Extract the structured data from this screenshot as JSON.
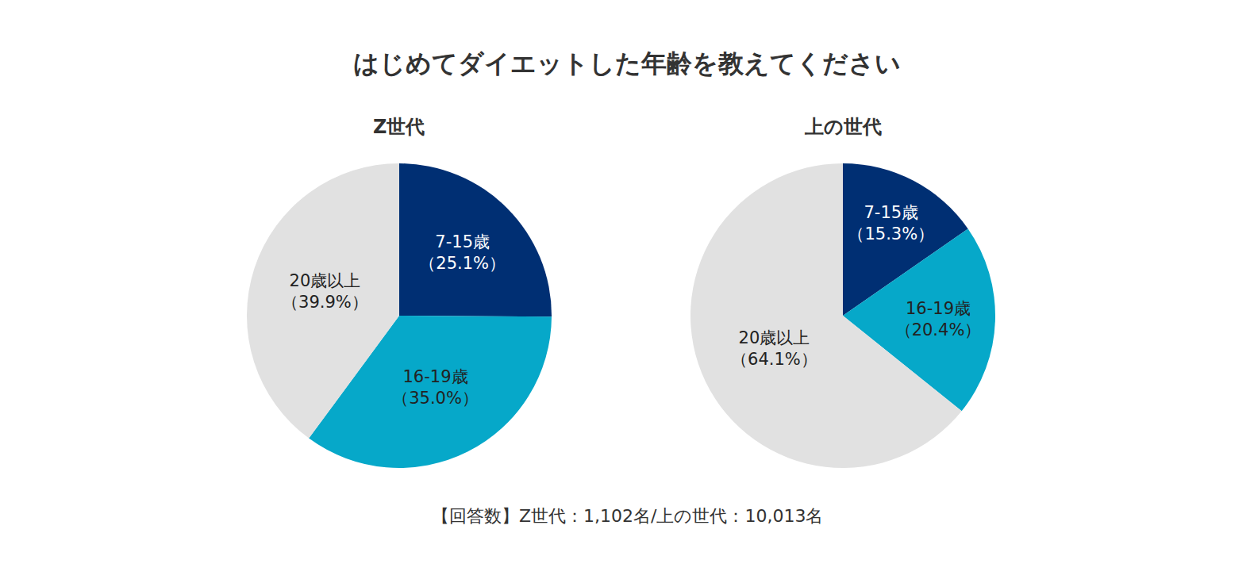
{
  "title": "はじめてダイエットした年齢を教えてください",
  "footnote": "【回答数】Z世代：1,102名/上の世代：10,013名",
  "chart_data": [
    {
      "type": "pie",
      "title": "Z世代",
      "categories": [
        "7-15歳",
        "16-19歳",
        "20歳以上"
      ],
      "values": [
        25.1,
        35.0,
        39.9
      ],
      "value_labels": [
        "（25.1%）",
        "（35.0%）",
        "（39.9%）"
      ],
      "colors": [
        "#002f73",
        "#06a8c9",
        "#e1e1e1"
      ],
      "data_labels": true
    },
    {
      "type": "pie",
      "title": "上の世代",
      "categories": [
        "7-15歳",
        "16-19歳",
        "20歳以上"
      ],
      "values": [
        15.3,
        20.4,
        64.1
      ],
      "value_labels": [
        "（15.3%）",
        "（20.4%）",
        "（64.1%）"
      ],
      "colors": [
        "#002f73",
        "#06a8c9",
        "#e1e1e1"
      ],
      "data_labels": true
    }
  ]
}
